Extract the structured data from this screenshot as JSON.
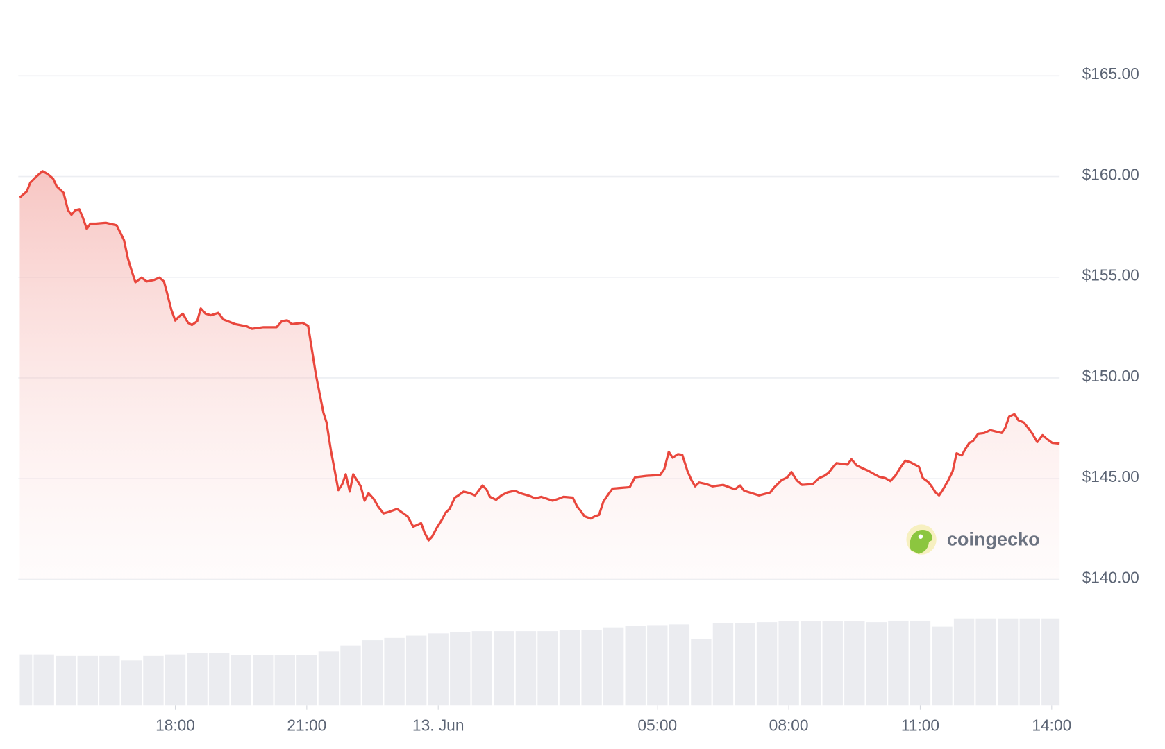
{
  "chart_data": [
    {
      "type": "line",
      "x": [
        -9.55,
        -9.39,
        -9.31,
        -9.17,
        -9.03,
        -8.91,
        -8.79,
        -8.71,
        -8.55,
        -8.45,
        -8.37,
        -8.28,
        -8.19,
        -8.11,
        -8.02,
        -7.94,
        -7.82,
        -7.58,
        -7.34,
        -7.25,
        -7.17,
        -7.08,
        -6.99,
        -6.91,
        -6.77,
        -6.65,
        -6.48,
        -6.36,
        -6.26,
        -6.19,
        -6.09,
        -6.0,
        -5.92,
        -5.83,
        -5.71,
        -5.62,
        -5.5,
        -5.42,
        -5.31,
        -5.19,
        -5.02,
        -4.9,
        -4.63,
        -4.37,
        -4.25,
        -3.99,
        -3.69,
        -3.57,
        -3.45,
        -3.34,
        -3.1,
        -2.97,
        -2.79,
        -2.62,
        -2.55,
        -2.45,
        -2.37,
        -2.28,
        -2.19,
        -2.11,
        -2.02,
        -1.94,
        -1.83,
        -1.77,
        -1.68,
        -1.59,
        -1.47,
        -1.37,
        -1.25,
        -1.13,
        -0.94,
        -0.7,
        -0.57,
        -0.39,
        -0.31,
        -0.22,
        -0.14,
        -0.05,
        0.09,
        0.17,
        0.26,
        0.38,
        0.46,
        0.58,
        0.72,
        0.84,
        1.01,
        1.1,
        1.18,
        1.32,
        1.44,
        1.58,
        1.75,
        1.87,
        2.09,
        2.21,
        2.35,
        2.61,
        2.73,
        2.86,
        3.07,
        3.17,
        3.24,
        3.34,
        3.48,
        3.57,
        3.67,
        3.77,
        3.89,
        3.98,
        4.37,
        4.49,
        4.75,
        5.06,
        5.16,
        5.26,
        5.35,
        5.47,
        5.57,
        5.69,
        5.78,
        5.86,
        5.95,
        6.12,
        6.26,
        6.5,
        6.77,
        6.89,
        6.98,
        7.2,
        7.32,
        7.58,
        7.66,
        7.83,
        7.97,
        8.06,
        8.18,
        8.3,
        8.55,
        8.69,
        8.81,
        8.91,
        9.0,
        9.09,
        9.34,
        9.43,
        9.55,
        9.69,
        9.81,
        9.93,
        10.06,
        10.2,
        10.32,
        10.44,
        10.58,
        10.66,
        10.78,
        10.97,
        11.06,
        11.18,
        11.26,
        11.35,
        11.43,
        11.52,
        11.64,
        11.74,
        11.83,
        11.95,
        12.03,
        12.12,
        12.2,
        12.32,
        12.46,
        12.6,
        12.86,
        12.94,
        13.03,
        13.15,
        13.24,
        13.36,
        13.46,
        13.56,
        13.67,
        13.79,
        13.89,
        14.01,
        14.18
      ],
      "series": [
        {
          "color": "#e9473d",
          "values": [
            158.96,
            159.26,
            159.7,
            160.0,
            160.27,
            160.12,
            159.9,
            159.52,
            159.19,
            158.33,
            158.1,
            158.33,
            158.37,
            157.96,
            157.4,
            157.66,
            157.66,
            157.7,
            157.58,
            157.2,
            156.84,
            155.91,
            155.28,
            154.75,
            154.98,
            154.79,
            154.87,
            154.98,
            154.79,
            154.23,
            153.38,
            152.85,
            153.04,
            153.19,
            152.74,
            152.63,
            152.82,
            153.45,
            153.19,
            153.11,
            153.23,
            152.9,
            152.67,
            152.56,
            152.44,
            152.52,
            152.52,
            152.82,
            152.86,
            152.67,
            152.74,
            152.59,
            150.13,
            148.27,
            147.79,
            146.41,
            145.48,
            144.43,
            144.73,
            145.22,
            144.36,
            145.22,
            144.84,
            144.62,
            143.91,
            144.28,
            143.99,
            143.61,
            143.28,
            143.35,
            143.5,
            143.13,
            142.61,
            142.79,
            142.31,
            141.94,
            142.12,
            142.5,
            142.98,
            143.32,
            143.5,
            144.06,
            144.17,
            144.36,
            144.28,
            144.17,
            144.66,
            144.47,
            144.1,
            143.95,
            144.17,
            144.32,
            144.4,
            144.28,
            144.14,
            144.02,
            144.1,
            143.91,
            143.99,
            144.1,
            144.06,
            143.61,
            143.43,
            143.13,
            143.02,
            143.13,
            143.2,
            143.87,
            144.25,
            144.51,
            144.58,
            145.07,
            145.14,
            145.18,
            145.48,
            146.33,
            146.04,
            146.22,
            146.18,
            145.37,
            144.92,
            144.62,
            144.81,
            144.73,
            144.62,
            144.69,
            144.47,
            144.66,
            144.4,
            144.25,
            144.17,
            144.32,
            144.55,
            144.92,
            145.07,
            145.33,
            144.92,
            144.69,
            144.73,
            145.03,
            145.14,
            145.29,
            145.55,
            145.77,
            145.7,
            145.96,
            145.66,
            145.51,
            145.4,
            145.25,
            145.1,
            145.03,
            144.88,
            145.18,
            145.66,
            145.89,
            145.81,
            145.59,
            145.03,
            144.84,
            144.62,
            144.32,
            144.17,
            144.47,
            144.92,
            145.37,
            146.26,
            146.15,
            146.48,
            146.78,
            146.86,
            147.23,
            147.27,
            147.41,
            147.27,
            147.53,
            148.08,
            148.2,
            147.9,
            147.79,
            147.53,
            147.23,
            146.82,
            147.16,
            146.97,
            146.78,
            146.74
          ]
        }
      ],
      "xlim": [
        -9.55,
        14.18
      ],
      "xticks": [
        {
          "value": -6,
          "label": "18:00"
        },
        {
          "value": -3,
          "label": "21:00"
        },
        {
          "value": 0,
          "label": "13. Jun"
        },
        {
          "value": 5,
          "label": "05:00"
        },
        {
          "value": 8,
          "label": "08:00"
        },
        {
          "value": 11,
          "label": "11:00"
        },
        {
          "value": 14,
          "label": "14:00"
        }
      ],
      "ylim": [
        140,
        165
      ],
      "yticks": [
        {
          "value": 140,
          "label": "$140.00"
        },
        {
          "value": 145,
          "label": "$145.00"
        },
        {
          "value": 150,
          "label": "$150.00"
        },
        {
          "value": 155,
          "label": "$155.00"
        },
        {
          "value": 160,
          "label": "$160.00"
        },
        {
          "value": 165,
          "label": "$165.00"
        }
      ],
      "grid": true
    },
    {
      "type": "bar",
      "x": [
        -9.5,
        -9,
        -8.5,
        -8,
        -7.5,
        -7,
        -6.5,
        -6,
        -5.5,
        -5,
        -4.5,
        -4,
        -3.5,
        -3,
        -2.5,
        -2,
        -1.5,
        -1,
        -0.5,
        0,
        0.5,
        1,
        1.5,
        2,
        2.5,
        3,
        3.5,
        4,
        4.5,
        5,
        5.5,
        6,
        6.5,
        7,
        7.5,
        8,
        8.5,
        9,
        9.5,
        10,
        10.5,
        11,
        11.5,
        12,
        12.5,
        13,
        13.5,
        14
      ],
      "values": [
        68,
        68,
        66,
        66,
        66,
        60,
        66,
        68,
        70,
        70,
        67,
        67,
        67,
        67,
        72,
        80,
        87,
        90,
        93,
        96,
        98,
        99,
        99,
        99,
        99,
        100,
        100,
        104,
        106,
        107,
        108,
        88,
        110,
        110,
        111,
        112,
        112,
        112,
        112,
        111,
        113,
        113,
        105,
        116,
        116,
        116,
        116,
        116
      ],
      "color": "#ebecf0",
      "ylim": [
        0,
        140
      ]
    }
  ],
  "watermark": "coingecko"
}
